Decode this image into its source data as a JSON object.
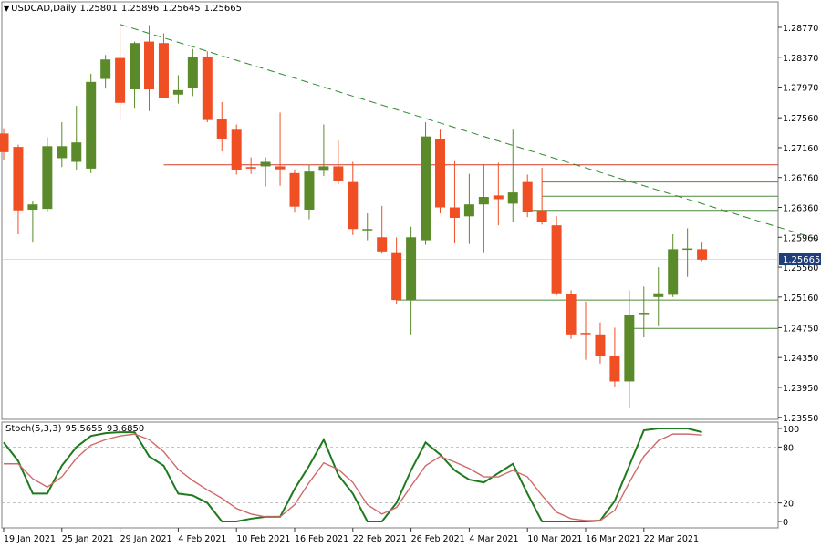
{
  "header": {
    "symbol": "USDCAD,Daily",
    "open": "1.25801",
    "high": "1.25896",
    "low": "1.25645",
    "close": "1.25665"
  },
  "current_price_label": "1.25665",
  "indicator": {
    "label": "Stoch(5,3,3)",
    "main_value": "95.5655",
    "signal_value": "93.6850"
  },
  "colors": {
    "bull": "#5a8a2a",
    "bear": "#f04e23",
    "trendline": "#2e8b2e",
    "resistance": "#d83a2a",
    "support": "#4f8a3c",
    "stoch_main": "#1e7a1e",
    "stoch_signal": "#d06a6a"
  },
  "chart_data": [
    {
      "type": "candlestick",
      "symbol": "USDCAD",
      "timeframe": "Daily",
      "ylim": [
        1.2355,
        1.2903
      ],
      "yticks": [
        "1.28770",
        "1.28370",
        "1.27970",
        "1.27560",
        "1.27160",
        "1.26760",
        "1.26360",
        "1.25960",
        "1.25560",
        "1.25160",
        "1.24750",
        "1.24350",
        "1.23950",
        "1.23550"
      ],
      "xticks": [
        {
          "index": 0,
          "label": "19 Jan 2021"
        },
        {
          "index": 4,
          "label": "25 Jan 2021"
        },
        {
          "index": 8,
          "label": "29 Jan 2021"
        },
        {
          "index": 12,
          "label": "4 Feb 2021"
        },
        {
          "index": 16,
          "label": "10 Feb 2021"
        },
        {
          "index": 20,
          "label": "16 Feb 2021"
        },
        {
          "index": 24,
          "label": "22 Feb 2021"
        },
        {
          "index": 28,
          "label": "26 Feb 2021"
        },
        {
          "index": 32,
          "label": "4 Mar 2021"
        },
        {
          "index": 36,
          "label": "10 Mar 2021"
        },
        {
          "index": 40,
          "label": "16 Mar 2021"
        },
        {
          "index": 44,
          "label": "22 Mar 2021"
        }
      ],
      "ohlc": [
        [
          1.2735,
          1.2742,
          1.27,
          1.271
        ],
        [
          1.2717,
          1.272,
          1.26,
          1.2632
        ],
        [
          1.2633,
          1.2645,
          1.259,
          1.264
        ],
        [
          1.2634,
          1.273,
          1.263,
          1.2718
        ],
        [
          1.2702,
          1.275,
          1.269,
          1.2718
        ],
        [
          1.2697,
          1.2772,
          1.2686,
          1.2723
        ],
        [
          1.2688,
          1.2815,
          1.2682,
          1.2804
        ],
        [
          1.2808,
          1.284,
          1.2795,
          1.2834
        ],
        [
          1.2836,
          1.2879,
          1.2753,
          1.2776
        ],
        [
          1.2794,
          1.2858,
          1.2768,
          1.2856
        ],
        [
          1.2858,
          1.288,
          1.2765,
          1.2794
        ],
        [
          1.2856,
          1.2869,
          1.2783,
          1.2783
        ],
        [
          1.2787,
          1.2813,
          1.2775,
          1.2793
        ],
        [
          1.2796,
          1.2848,
          1.2785,
          1.2837
        ],
        [
          1.2838,
          1.2845,
          1.275,
          1.2753
        ],
        [
          1.2754,
          1.2777,
          1.2711,
          1.2727
        ],
        [
          1.274,
          1.2747,
          1.268,
          1.2686
        ],
        [
          1.269,
          1.2703,
          1.2681,
          1.2688
        ],
        [
          1.2691,
          1.2703,
          1.2664,
          1.2697
        ],
        [
          1.2691,
          1.2763,
          1.2665,
          1.2687
        ],
        [
          1.2682,
          1.2687,
          1.2629,
          1.2637
        ],
        [
          1.2633,
          1.2693,
          1.262,
          1.2684
        ],
        [
          1.2685,
          1.2747,
          1.2678,
          1.2691
        ],
        [
          1.2691,
          1.2726,
          1.2667,
          1.2672
        ],
        [
          1.267,
          1.2697,
          1.2599,
          1.2607
        ],
        [
          1.2607,
          1.2628,
          1.2592,
          1.2607
        ],
        [
          1.2596,
          1.2638,
          1.2574,
          1.2577
        ],
        [
          1.2576,
          1.2596,
          1.2506,
          1.2512
        ],
        [
          1.2512,
          1.261,
          1.2466,
          1.2596
        ],
        [
          1.2592,
          1.275,
          1.2586,
          1.2731
        ],
        [
          1.2728,
          1.274,
          1.2628,
          1.2636
        ],
        [
          1.2636,
          1.2698,
          1.2588,
          1.2622
        ],
        [
          1.2624,
          1.2681,
          1.2587,
          1.264
        ],
        [
          1.264,
          1.2694,
          1.2576,
          1.265
        ],
        [
          1.2652,
          1.2696,
          1.2612,
          1.2647
        ],
        [
          1.2641,
          1.274,
          1.2617,
          1.2656
        ],
        [
          1.267,
          1.268,
          1.2623,
          1.263
        ],
        [
          1.2632,
          1.2689,
          1.2613,
          1.2617
        ],
        [
          1.2612,
          1.2624,
          1.2518,
          1.2521
        ],
        [
          1.252,
          1.2525,
          1.246,
          1.2466
        ],
        [
          1.2468,
          1.251,
          1.2432,
          1.2467
        ],
        [
          1.2466,
          1.2482,
          1.2427,
          1.2437
        ],
        [
          1.2437,
          1.2475,
          1.2396,
          1.2403
        ],
        [
          1.2403,
          1.2525,
          1.2368,
          1.2492
        ],
        [
          1.2494,
          1.253,
          1.2462,
          1.2495
        ],
        [
          1.2516,
          1.2556,
          1.2477,
          1.2521
        ],
        [
          1.2519,
          1.26,
          1.2516,
          1.258
        ],
        [
          1.2581,
          1.2608,
          1.2543,
          1.2581
        ],
        [
          1.258,
          1.259,
          1.2564,
          1.2566
        ]
      ],
      "trendline": [
        {
          "index": 8,
          "price": 1.2881
        },
        {
          "index": 58,
          "price": 1.2581
        }
      ],
      "horizontal_levels": [
        {
          "price": 1.2693,
          "from_index": 11,
          "color": "resistance"
        },
        {
          "price": 1.267,
          "from_index": 37,
          "color": "support"
        },
        {
          "price": 1.2651,
          "from_index": 37,
          "color": "support"
        },
        {
          "price": 1.2632,
          "from_index": 36,
          "color": "support"
        },
        {
          "price": 1.2512,
          "from_index": 27,
          "color": "support"
        },
        {
          "price": 1.2492,
          "from_index": 43,
          "color": "support"
        },
        {
          "price": 1.2474,
          "from_index": 43,
          "color": "support"
        }
      ],
      "current_price": 1.25665,
      "grid": false
    },
    {
      "type": "line",
      "name": "Stoch(5,3,3)",
      "ylim": [
        -5,
        105
      ],
      "yticks": [
        100,
        80,
        20,
        0
      ],
      "levels": [
        80,
        20
      ],
      "series": [
        {
          "name": "main",
          "values": [
            85,
            65,
            30,
            30,
            60,
            80,
            92,
            95,
            96,
            96,
            70,
            60,
            30,
            28,
            20,
            0,
            0,
            3,
            5,
            5,
            35,
            60,
            88,
            50,
            30,
            0,
            0,
            20,
            55,
            85,
            72,
            55,
            45,
            42,
            52,
            62,
            30,
            0,
            0,
            0,
            0,
            1,
            22,
            60,
            98,
            100,
            100,
            100,
            96
          ]
        },
        {
          "name": "signal",
          "values": [
            62,
            62,
            46,
            37,
            48,
            68,
            82,
            88,
            92,
            94,
            88,
            75,
            56,
            44,
            34,
            25,
            14,
            8,
            5,
            5,
            18,
            42,
            63,
            56,
            42,
            18,
            8,
            15,
            38,
            60,
            70,
            64,
            57,
            48,
            48,
            55,
            48,
            28,
            10,
            3,
            1,
            1,
            12,
            42,
            70,
            87,
            94,
            94,
            93
          ]
        }
      ]
    }
  ]
}
